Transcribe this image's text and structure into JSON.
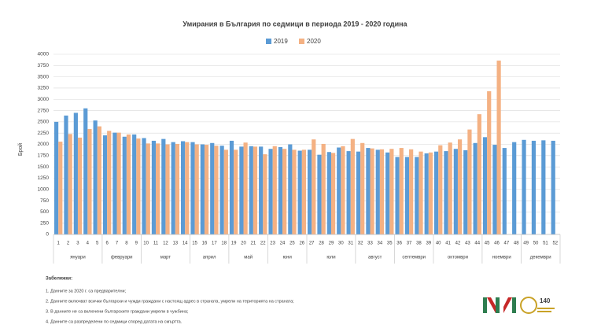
{
  "chart_data": {
    "type": "bar",
    "title": "Умирания в България по седмици в периода 2019 - 2020 година",
    "y_label": "Брой",
    "categories": [
      "1",
      "2",
      "3",
      "4",
      "5",
      "6",
      "7",
      "8",
      "9",
      "10",
      "11",
      "12",
      "13",
      "14",
      "15",
      "16",
      "17",
      "18",
      "19",
      "20",
      "21",
      "22",
      "23",
      "24",
      "25",
      "26",
      "27",
      "28",
      "29",
      "30",
      "31",
      "32",
      "33",
      "34",
      "35",
      "36",
      "37",
      "38",
      "39",
      "40",
      "41",
      "42",
      "43",
      "44",
      "45",
      "46",
      "47",
      "48",
      "49",
      "50",
      "51",
      "52"
    ],
    "month_groups": [
      {
        "label": "януари",
        "from": "1",
        "to": "5"
      },
      {
        "label": "февруари",
        "from": "6",
        "to": "9"
      },
      {
        "label": "март",
        "from": "10",
        "to": "14"
      },
      {
        "label": "април",
        "from": "15",
        "to": "18"
      },
      {
        "label": "май",
        "from": "19",
        "to": "22"
      },
      {
        "label": "юни",
        "from": "23",
        "to": "26"
      },
      {
        "label": "юли",
        "from": "27",
        "to": "31"
      },
      {
        "label": "август",
        "from": "32",
        "to": "35"
      },
      {
        "label": "септември",
        "from": "36",
        "to": "39"
      },
      {
        "label": "октомври",
        "from": "40",
        "to": "44"
      },
      {
        "label": "ноември",
        "from": "45",
        "to": "48"
      },
      {
        "label": "декември",
        "from": "49",
        "to": "52"
      }
    ],
    "series": [
      {
        "name": "2019",
        "color": "#5b9bd5",
        "values": [
          2500,
          2640,
          2700,
          2800,
          2530,
          2200,
          2260,
          2170,
          2220,
          2140,
          2080,
          2120,
          2050,
          2070,
          2050,
          2000,
          2030,
          1970,
          2080,
          1950,
          1960,
          1950,
          1900,
          1940,
          2000,
          1860,
          1880,
          1770,
          1830,
          1930,
          1850,
          1840,
          1920,
          1880,
          1820,
          1720,
          1720,
          1720,
          1800,
          1840,
          1850,
          1900,
          1870,
          2030,
          2160,
          1990,
          1920,
          2050,
          2100,
          2080,
          2090,
          2080
        ]
      },
      {
        "name": "2020",
        "color": "#f4b183",
        "values": [
          2060,
          2230,
          2150,
          2340,
          2400,
          2300,
          2260,
          2220,
          2130,
          2020,
          2020,
          2000,
          2010,
          2050,
          2000,
          1990,
          1970,
          1880,
          1880,
          2040,
          1950,
          1780,
          1960,
          1900,
          1880,
          1880,
          2110,
          2010,
          1810,
          1960,
          2120,
          2030,
          1910,
          1890,
          1900,
          1920,
          1890,
          1840,
          1820,
          1980,
          2040,
          2110,
          2330,
          2670,
          3180,
          3860,
          null,
          null,
          null,
          null,
          null,
          null
        ]
      }
    ],
    "ylim": [
      0,
      4000
    ],
    "yticks": [
      0,
      250,
      500,
      750,
      1000,
      1250,
      1500,
      1750,
      2000,
      2250,
      2500,
      2750,
      3000,
      3250,
      3500,
      3750,
      4000
    ],
    "grid": true
  },
  "notes": {
    "heading": "Забележки:",
    "items": [
      "1. Данните за 2020 г. са предварителни;",
      "2. Данните включват всички български и чужди граждани с настоящ адрес в страната, умрели на територията на страната;",
      "3. В данните не са включени българските граждани умрели в чужбина;",
      "4. Данните са разпределени по седмици според датата на смъртта."
    ]
  },
  "logo": {
    "anniversary": "140"
  }
}
